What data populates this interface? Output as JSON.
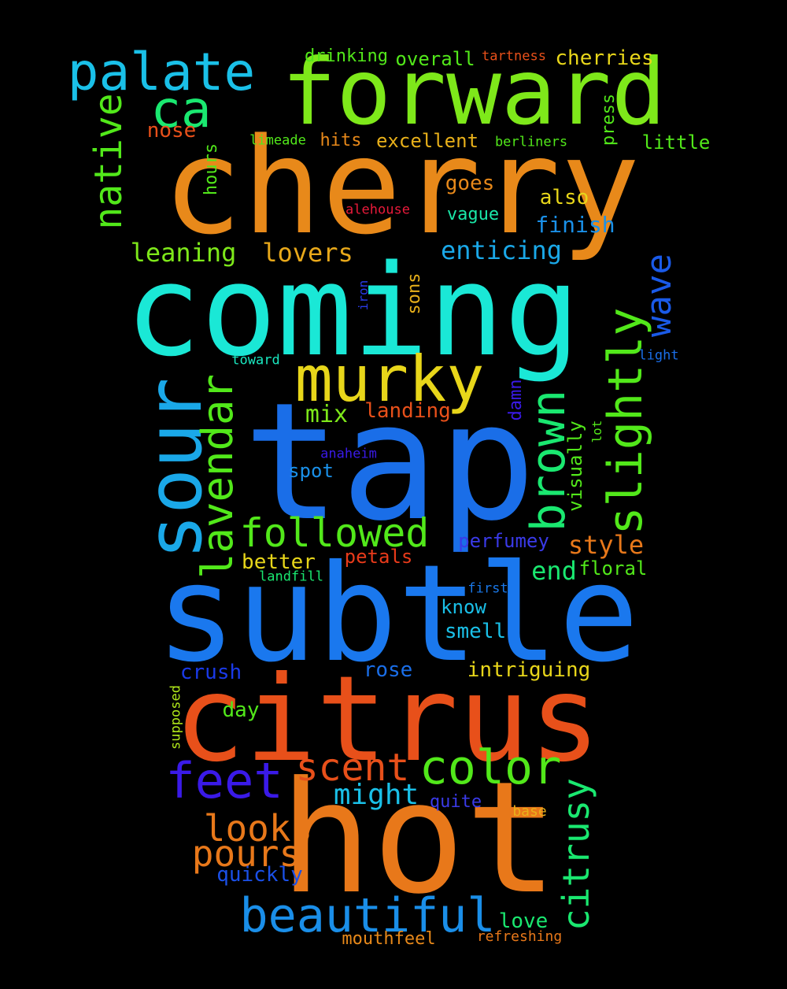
{
  "words": [
    {
      "text": "cherry",
      "color": "#e8891a"
    },
    {
      "text": "forward",
      "color": "#7ee81a"
    },
    {
      "text": "coming",
      "color": "#1ae8d6"
    },
    {
      "text": "tap",
      "color": "#1a6ee8"
    },
    {
      "text": "subtle",
      "color": "#1a78ee"
    },
    {
      "text": "citrus",
      "color": "#e8501a"
    },
    {
      "text": "hot",
      "color": "#e8781a"
    },
    {
      "text": "palate",
      "color": "#1ac0e8"
    },
    {
      "text": "ca",
      "color": "#1ae870"
    },
    {
      "text": "murky",
      "color": "#e8d61a"
    },
    {
      "text": "sour",
      "color": "#1aa8e8"
    },
    {
      "text": "native",
      "color": "#52e81a"
    },
    {
      "text": "lavendar",
      "color": "#52e81a"
    },
    {
      "text": "brown",
      "color": "#1ae870"
    },
    {
      "text": "slightly",
      "color": "#52e81a"
    },
    {
      "text": "wave",
      "color": "#1a5ae8"
    },
    {
      "text": "followed",
      "color": "#52e81a"
    },
    {
      "text": "feet",
      "color": "#3a1ae8"
    },
    {
      "text": "scent",
      "color": "#e8501a"
    },
    {
      "text": "color",
      "color": "#52e81a"
    },
    {
      "text": "beautiful",
      "color": "#1a8ee8"
    },
    {
      "text": "citrusy",
      "color": "#1ae870"
    },
    {
      "text": "looks",
      "color": "#e8781a"
    },
    {
      "text": "pours",
      "color": "#e8781a"
    },
    {
      "text": "might",
      "color": "#1ac0e8"
    },
    {
      "text": "drinking",
      "color": "#52e81a"
    },
    {
      "text": "overall",
      "color": "#52e81a"
    },
    {
      "text": "tartness",
      "color": "#e8501a"
    },
    {
      "text": "cherries",
      "color": "#e8d61a"
    },
    {
      "text": "nose",
      "color": "#e8501a"
    },
    {
      "text": "limeade",
      "color": "#52e81a"
    },
    {
      "text": "hits",
      "color": "#e8891a"
    },
    {
      "text": "excellent",
      "color": "#e8b01a"
    },
    {
      "text": "berliners",
      "color": "#52e81a"
    },
    {
      "text": "press",
      "color": "#52e81a"
    },
    {
      "text": "little",
      "color": "#52e81a"
    },
    {
      "text": "hours",
      "color": "#52e81a"
    },
    {
      "text": "goes",
      "color": "#e8891a"
    },
    {
      "text": "also",
      "color": "#e8d61a"
    },
    {
      "text": "alehouse",
      "color": "#e81a3a"
    },
    {
      "text": "vague",
      "color": "#1ae8a8"
    },
    {
      "text": "finish",
      "color": "#1a90e8"
    },
    {
      "text": "leaning",
      "color": "#7ee81a"
    },
    {
      "text": "lovers",
      "color": "#e8a81a"
    },
    {
      "text": "enticing",
      "color": "#1aa8e8"
    },
    {
      "text": "iron",
      "color": "#2a3ae8"
    },
    {
      "text": "sons",
      "color": "#e8b01a"
    },
    {
      "text": "toward",
      "color": "#1ae8c0"
    },
    {
      "text": "light",
      "color": "#1a6ee8"
    },
    {
      "text": "mix",
      "color": "#7ee81a"
    },
    {
      "text": "landing",
      "color": "#e8501a"
    },
    {
      "text": "damn",
      "color": "#3a1ae8"
    },
    {
      "text": "lot",
      "color": "#52e81a"
    },
    {
      "text": "visually",
      "color": "#52e81a"
    },
    {
      "text": "anaheim",
      "color": "#3a1ae8"
    },
    {
      "text": "spot",
      "color": "#1a90e8"
    },
    {
      "text": "perfumey",
      "color": "#3a3ae8"
    },
    {
      "text": "style",
      "color": "#e8781a"
    },
    {
      "text": "better",
      "color": "#e8d61a"
    },
    {
      "text": "petals",
      "color": "#e83a1a"
    },
    {
      "text": "end",
      "color": "#1ae870"
    },
    {
      "text": "floral",
      "color": "#52e81a"
    },
    {
      "text": "landfill",
      "color": "#1ae870"
    },
    {
      "text": "first",
      "color": "#1a78e8"
    },
    {
      "text": "know",
      "color": "#1ac0e8"
    },
    {
      "text": "smell",
      "color": "#1ac0e8"
    },
    {
      "text": "crush",
      "color": "#1a3ae8"
    },
    {
      "text": "rose",
      "color": "#1a6ee8"
    },
    {
      "text": "intriguing",
      "color": "#e8d61a"
    },
    {
      "text": "supposed",
      "color": "#b0e81a"
    },
    {
      "text": "day",
      "color": "#52e81a"
    },
    {
      "text": "quite",
      "color": "#3a3ae8"
    },
    {
      "text": "base",
      "color": "#e8b01a"
    },
    {
      "text": "quickly",
      "color": "#1a50e8"
    },
    {
      "text": "love",
      "color": "#1ae870"
    },
    {
      "text": "mouthfeel",
      "color": "#e8891a"
    },
    {
      "text": "refreshing",
      "color": "#e8781a"
    }
  ]
}
